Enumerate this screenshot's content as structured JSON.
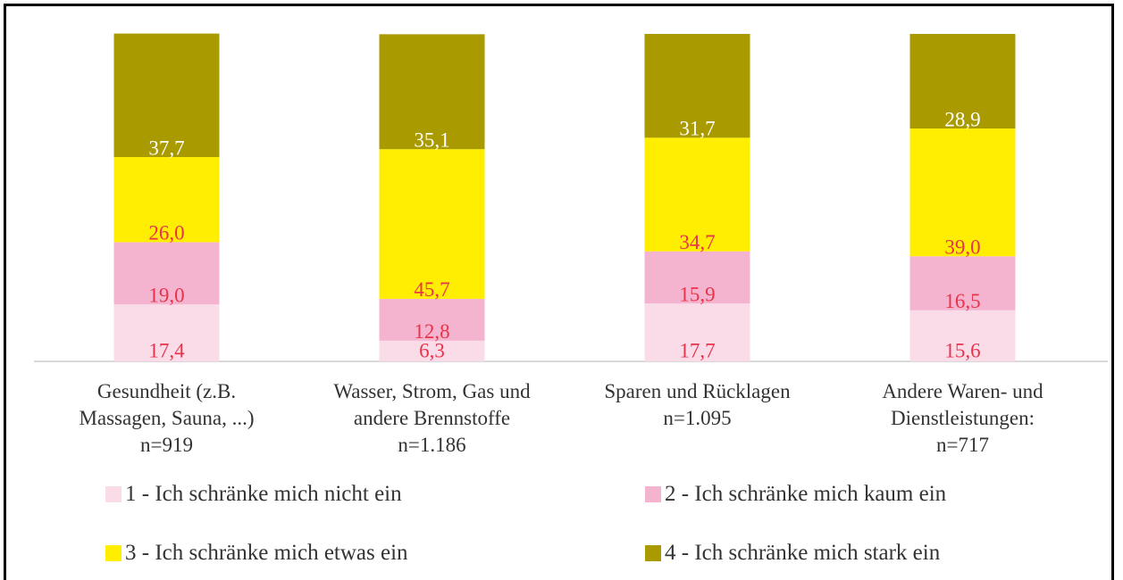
{
  "chart_data": {
    "type": "stacked_bar",
    "categories": [
      "Gesundheit (z.B.\nMassagen, Sauna, ...)\nn=919",
      "Wasser, Strom, Gas und\nandere Brennstoffe\nn=1.186",
      "Sparen und Rücklagen\nn=1.095",
      "Andere Waren- und\nDienstleistungen:\nn=717"
    ],
    "series": [
      {
        "name": "1 - Ich schränke mich nicht ein",
        "color": "#fadbe8",
        "label_color": "#e8334a",
        "values": [
          17.4,
          6.3,
          17.7,
          15.6
        ],
        "value_labels": [
          "17,4",
          "6,3",
          "17,7",
          "15,6"
        ]
      },
      {
        "name": "2 - Ich schränke mich kaum ein",
        "color": "#f4b4cf",
        "label_color": "#e8334a",
        "values": [
          19.0,
          12.8,
          15.9,
          16.5
        ],
        "value_labels": [
          "19,0",
          "12,8",
          "15,9",
          "16,5"
        ]
      },
      {
        "name": "3 - Ich schränke mich etwas ein",
        "color": "#ffee00",
        "label_color": "#e8334a",
        "values": [
          26.0,
          45.7,
          34.7,
          39.0
        ],
        "value_labels": [
          "26,0",
          "45,7",
          "34,7",
          "39,0"
        ]
      },
      {
        "name": "4 - Ich schränke mich stark ein",
        "color": "#a99a00",
        "label_color": "#ffffff",
        "values": [
          37.7,
          35.1,
          31.7,
          28.9
        ],
        "value_labels": [
          "37,7",
          "35,1",
          "31,7",
          "28,9"
        ]
      }
    ],
    "ylim": [
      0,
      100
    ]
  }
}
